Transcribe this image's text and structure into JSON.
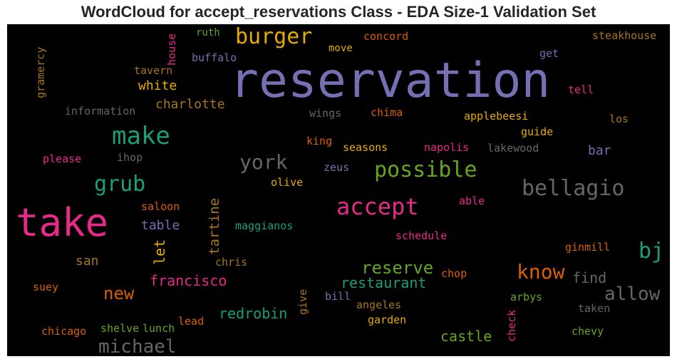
{
  "title": "WordCloud for accept_reservations Class - EDA Size-1 Validation Set",
  "palette": {
    "purple": "#7570b3",
    "pink": "#e7298a",
    "teal": "#1b9e77",
    "orange": "#d95f02",
    "gold": "#e6ab02",
    "green": "#66a61e",
    "brown": "#a6761d",
    "gray": "#666666",
    "background": "#000000"
  },
  "words": [
    {
      "text": "reservation"
    },
    {
      "text": "take"
    },
    {
      "text": "burger"
    },
    {
      "text": "make"
    },
    {
      "text": "accept"
    },
    {
      "text": "possible"
    },
    {
      "text": "bellagio"
    },
    {
      "text": "grub"
    },
    {
      "text": "york"
    },
    {
      "text": "bj"
    },
    {
      "text": "know"
    },
    {
      "text": "allow"
    },
    {
      "text": "michael"
    },
    {
      "text": "reserve"
    },
    {
      "text": "new"
    },
    {
      "text": "castle"
    },
    {
      "text": "francisco"
    },
    {
      "text": "restaurant"
    },
    {
      "text": "redrobin"
    },
    {
      "text": "find"
    },
    {
      "text": "white"
    },
    {
      "text": "charlotte"
    },
    {
      "text": "table"
    },
    {
      "text": "san"
    },
    {
      "text": "bar"
    },
    {
      "text": "ruth"
    },
    {
      "text": "concord"
    },
    {
      "text": "steakhouse"
    },
    {
      "text": "move"
    },
    {
      "text": "buffalo"
    },
    {
      "text": "get"
    },
    {
      "text": "tavern"
    },
    {
      "text": "tell"
    },
    {
      "text": "information"
    },
    {
      "text": "wings"
    },
    {
      "text": "chima"
    },
    {
      "text": "applebeesi"
    },
    {
      "text": "los"
    },
    {
      "text": "guide"
    },
    {
      "text": "king"
    },
    {
      "text": "seasons"
    },
    {
      "text": "napolis"
    },
    {
      "text": "lakewood"
    },
    {
      "text": "please"
    },
    {
      "text": "ihop"
    },
    {
      "text": "zeus"
    },
    {
      "text": "olive"
    },
    {
      "text": "saloon"
    },
    {
      "text": "able"
    },
    {
      "text": "maggianos"
    },
    {
      "text": "schedule"
    },
    {
      "text": "ginmill"
    },
    {
      "text": "chris"
    },
    {
      "text": "chop"
    },
    {
      "text": "suey"
    },
    {
      "text": "bill"
    },
    {
      "text": "angeles"
    },
    {
      "text": "arbys"
    },
    {
      "text": "taken"
    },
    {
      "text": "garden"
    },
    {
      "text": "chicago"
    },
    {
      "text": "shelve"
    },
    {
      "text": "lunch"
    },
    {
      "text": "lead"
    },
    {
      "text": "chevy"
    },
    {
      "text": "gramercy"
    },
    {
      "text": "house"
    },
    {
      "text": "let"
    },
    {
      "text": "tartine"
    },
    {
      "text": "give"
    },
    {
      "text": "check"
    }
  ]
}
